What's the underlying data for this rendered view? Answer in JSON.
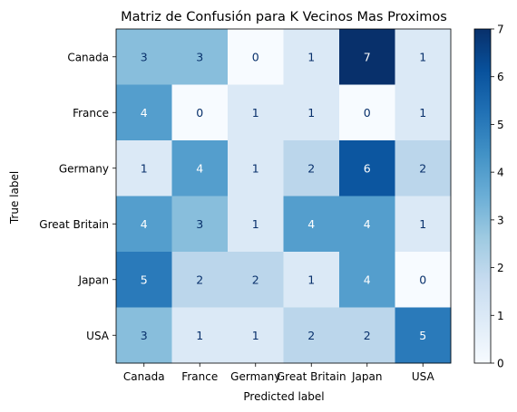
{
  "chart_data": {
    "type": "heatmap",
    "title": "Matriz de Confusión para K Vecinos Mas Proximos",
    "xlabel": "Predicted label",
    "ylabel": "True label",
    "x_categories": [
      "Canada",
      "France",
      "Germany",
      "Great Britain",
      "Japan",
      "USA"
    ],
    "y_categories": [
      "Canada",
      "France",
      "Germany",
      "Great Britain",
      "Japan",
      "USA"
    ],
    "values": [
      [
        3,
        3,
        0,
        1,
        7,
        1
      ],
      [
        4,
        0,
        1,
        1,
        0,
        1
      ],
      [
        1,
        4,
        1,
        2,
        6,
        2
      ],
      [
        4,
        3,
        1,
        4,
        4,
        1
      ],
      [
        5,
        2,
        2,
        1,
        4,
        0
      ],
      [
        3,
        1,
        1,
        2,
        2,
        5
      ]
    ],
    "colormap": "Blues",
    "vmin": 0,
    "vmax": 7,
    "colorbar_ticks": [
      0,
      1,
      2,
      3,
      4,
      5,
      6,
      7
    ],
    "text_color_light": "#ffffff",
    "text_color_dark": "#08306b"
  }
}
